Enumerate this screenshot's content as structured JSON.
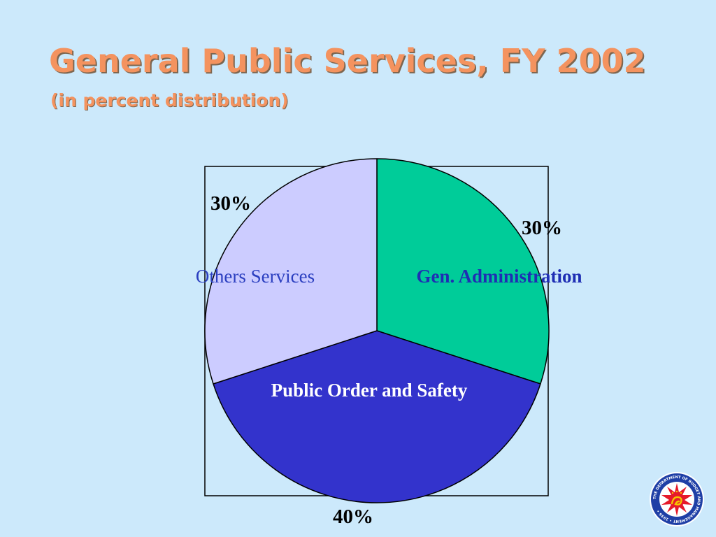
{
  "slide": {
    "title": "General Public Services, FY 2002",
    "subtitle": "(in percent distribution)"
  },
  "chart_data": {
    "type": "pie",
    "slices": [
      {
        "name": "Gen. Administration",
        "value": 30,
        "label": "30%",
        "color": "#00cc99",
        "name_color": "#1f2eb4",
        "name_bold": true
      },
      {
        "name": "Public Order and Safety",
        "value": 40,
        "label": "40%",
        "color": "#3333cc",
        "name_color": "#ffffff",
        "name_bold": true
      },
      {
        "name": "Others Services",
        "value": 30,
        "label": "30%",
        "color": "#ccccff",
        "name_color": "#2b3fc0",
        "name_bold": false
      }
    ],
    "start_angle_deg": 0,
    "direction": "clockwise"
  },
  "logo": {
    "name": "department-of-budget-and-management-seal",
    "ring_text": "THE DEPARTMENT OF BUDGET AND MANAGEMENT • 1936 •",
    "colors": {
      "ring": "#1f3fa6",
      "inner": "#e6192a",
      "emblem": "#f5c400"
    }
  }
}
